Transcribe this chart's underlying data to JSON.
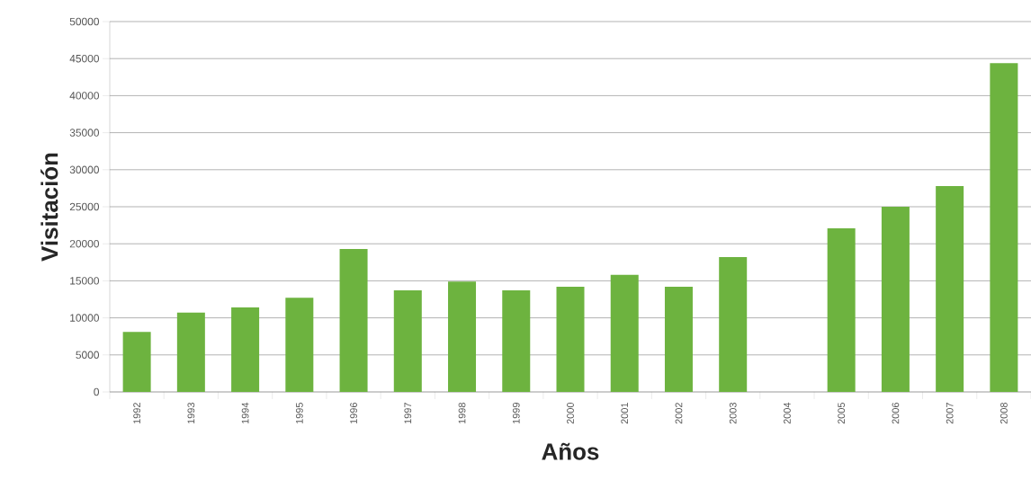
{
  "chart_data": {
    "type": "bar",
    "xlabel": "Años",
    "ylabel": "Visitación",
    "categories": [
      "1992",
      "1993",
      "1994",
      "1995",
      "1996",
      "1997",
      "1998",
      "1999",
      "2000",
      "2001",
      "2002",
      "2003",
      "2004",
      "2005",
      "2006",
      "2007",
      "2008"
    ],
    "values": [
      8100,
      10700,
      11400,
      12700,
      19300,
      13700,
      14900,
      13700,
      14200,
      15800,
      14200,
      18200,
      null,
      22100,
      25000,
      27800,
      44400
    ],
    "color": "#6db33f",
    "ylim": [
      0,
      50000
    ],
    "yticks": [
      0,
      5000,
      10000,
      15000,
      20000,
      25000,
      30000,
      35000,
      40000,
      45000,
      50000
    ],
    "grid": "y"
  }
}
